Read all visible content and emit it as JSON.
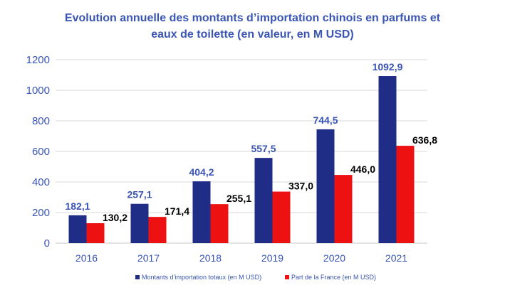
{
  "chart_data": {
    "type": "bar",
    "title_line1": "Evolution annuelle des montants d’importation chinois en parfums et",
    "title_line2": "eaux de toilette (en valeur, en M USD)",
    "categories": [
      "2016",
      "2017",
      "2018",
      "2019",
      "2020",
      "2021"
    ],
    "series": [
      {
        "name": "Montants d’importation totaux (en M USD)",
        "color": "#1f2d86",
        "label_color": "#3a55b4",
        "values": [
          182.1,
          257.1,
          404.2,
          557.5,
          744.5,
          1092.9
        ],
        "labels": [
          "182,1",
          "257,1",
          "404,2",
          "557,5",
          "744,5",
          "1092,9"
        ]
      },
      {
        "name": "Part de la France (en M USD)",
        "color": "#ee1111",
        "label_color": "#000000",
        "values": [
          130.2,
          171.4,
          255.1,
          337.0,
          446.0,
          636.8
        ],
        "labels": [
          "130,2",
          "171,4",
          "255,1",
          "337,0",
          "446,0",
          "636,8"
        ]
      }
    ],
    "yticks": [
      "0",
      "200",
      "400",
      "600",
      "800",
      "1000",
      "1200"
    ],
    "ylim": [
      0,
      1200
    ],
    "grid": true,
    "legend_position": "bottom"
  }
}
